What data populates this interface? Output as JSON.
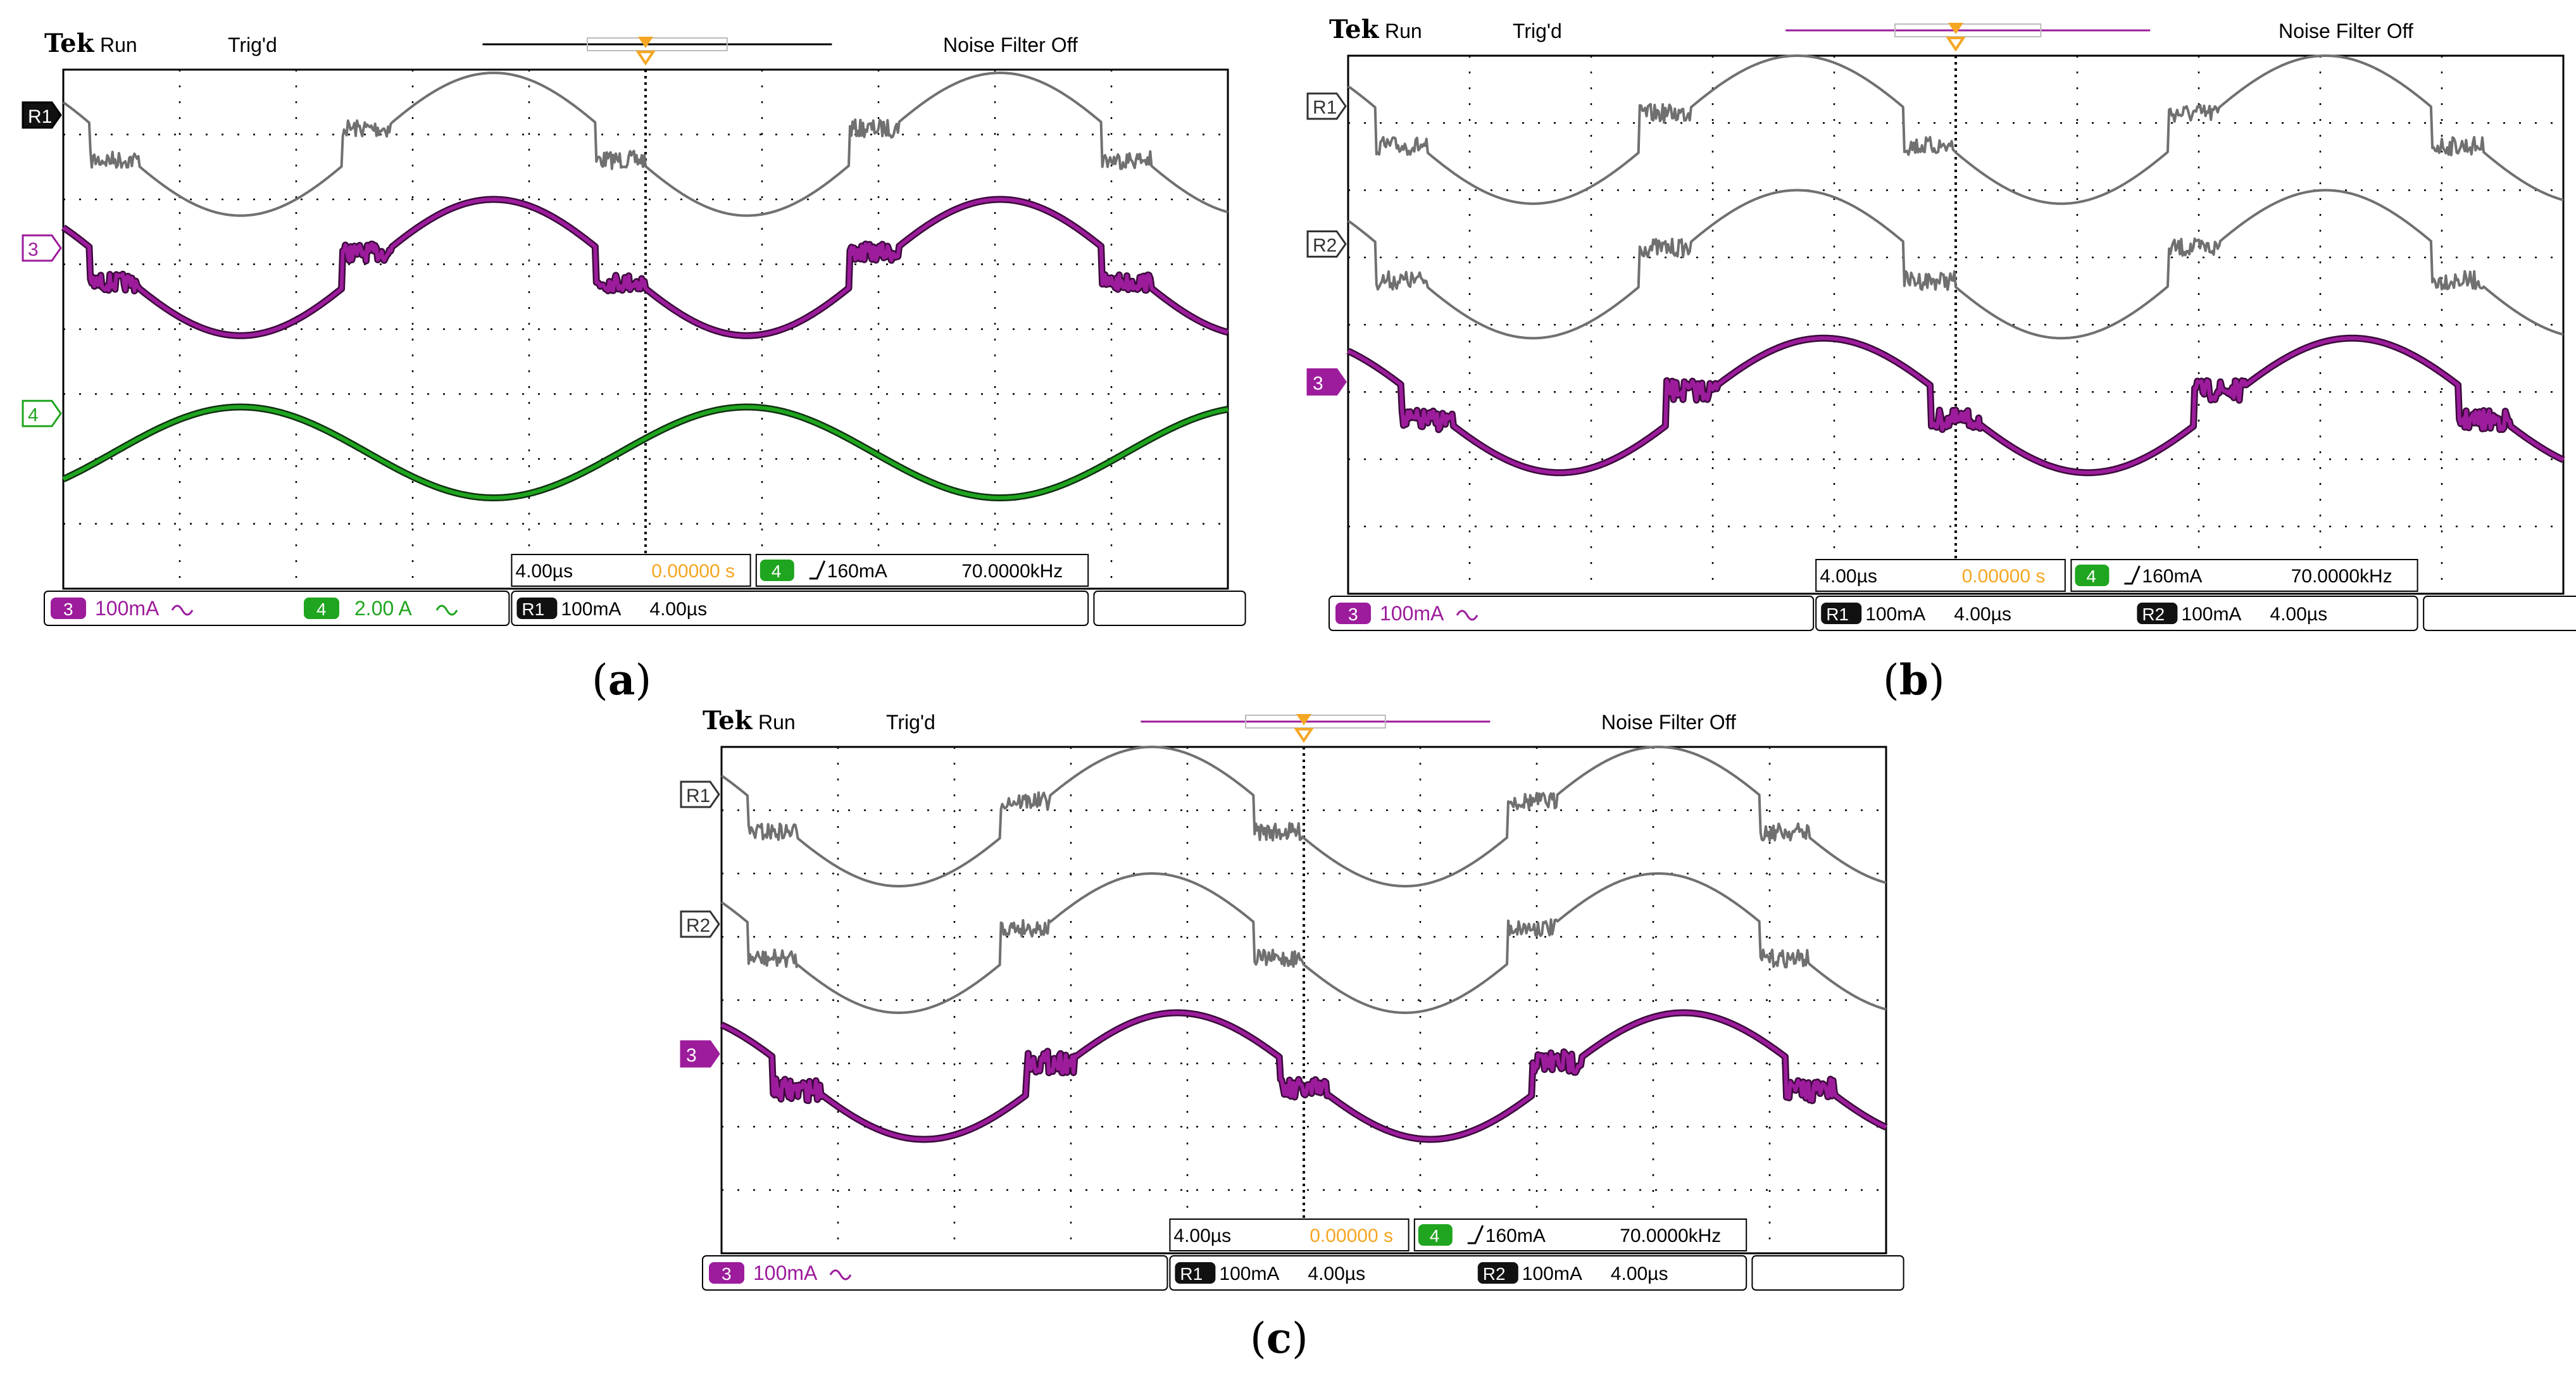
{
  "header": {
    "brand": "Tek",
    "status": "Run",
    "trigger_state": "Trig'd",
    "noise_filter": "Noise Filter Off"
  },
  "readouts": {
    "timebase": "4.00µs",
    "trigger_position": "0.00000 s",
    "trigger_channel": "4",
    "trigger_level": "160mA",
    "trigger_freq": "70.0000kHz",
    "ch3_scale": "100mA",
    "ch4_scale": "2.00 A",
    "ref_scale": "100mA",
    "ref_time": "4.00µs"
  },
  "colors": {
    "ref": "#707070",
    "ch3": "#9c1c9c",
    "ch3_outline": "#3a0a3a",
    "ch4": "#1fa51f",
    "ch4_outline": "#103010",
    "trigger": "#f5a623",
    "grid": "#000000",
    "frame": "#000000",
    "screen": "#ffffff"
  },
  "panels": [
    {
      "caption_open": "(",
      "caption_letter": "a",
      "caption_close": ")",
      "markers": [
        {
          "label": "R1",
          "style": "filled-dark",
          "level_div": 0.7
        },
        {
          "label": "3",
          "style": "outline-purple",
          "level_div": 2.75
        },
        {
          "label": "4",
          "style": "outline-green",
          "level_div": 5.3
        }
      ],
      "ref_labels": [
        "R1"
      ]
    },
    {
      "caption_open": "(",
      "caption_letter": "b",
      "caption_close": ")",
      "markers": [
        {
          "label": "R1",
          "style": "outline-gray",
          "level_div": 0.75
        },
        {
          "label": "R2",
          "style": "outline-gray",
          "level_div": 2.8
        },
        {
          "label": "3",
          "style": "filled-purple",
          "level_div": 4.85
        }
      ],
      "ref_labels": [
        "R1",
        "R2"
      ]
    },
    {
      "caption_open": "(",
      "caption_letter": "c",
      "caption_close": ")",
      "markers": [
        {
          "label": "R1",
          "style": "outline-gray",
          "level_div": 0.75
        },
        {
          "label": "R2",
          "style": "outline-gray",
          "level_div": 2.8
        },
        {
          "label": "3",
          "style": "filled-purple",
          "level_div": 4.85
        }
      ],
      "ref_labels": [
        "R1",
        "R2"
      ]
    }
  ],
  "chart_data": [
    {
      "type": "line",
      "panel": "a",
      "grid": true,
      "x_divisions": 10,
      "y_divisions": 8,
      "x_range_us": [
        -20,
        20
      ],
      "series": [
        {
          "name": "R1",
          "kind": "ref",
          "center_div": 1.15,
          "amplitude_div": 1.1,
          "phase": 0.15,
          "flat_div": 0.25,
          "noise": 0.05
        },
        {
          "name": "3",
          "kind": "ch3",
          "center_div": 3.05,
          "amplitude_div": 1.05,
          "phase": 0.15,
          "flat_div": 0.25,
          "noise": 0.05
        },
        {
          "name": "4",
          "kind": "ch4",
          "center_div": 5.9,
          "amplitude_div": 0.7,
          "phase": -0.35,
          "flat_div": 0,
          "noise": 0.0
        }
      ]
    },
    {
      "type": "line",
      "panel": "b",
      "grid": true,
      "x_divisions": 10,
      "y_divisions": 8,
      "x_range_us": [
        -20,
        20
      ],
      "series": [
        {
          "name": "R1",
          "kind": "ref",
          "center_div": 1.1,
          "amplitude_div": 1.1,
          "phase": 0.15,
          "flat_div": 0.25,
          "noise": 0.05
        },
        {
          "name": "R2",
          "kind": "ref",
          "center_div": 3.1,
          "amplitude_div": 1.1,
          "phase": 0.15,
          "flat_div": 0.25,
          "noise": 0.05
        },
        {
          "name": "3",
          "kind": "ch3",
          "center_div": 5.2,
          "amplitude_div": 1.0,
          "phase": 0.1,
          "flat_div": 0.2,
          "noise": 0.06
        }
      ]
    },
    {
      "type": "line",
      "panel": "c",
      "grid": true,
      "x_divisions": 10,
      "y_divisions": 8,
      "x_range_us": [
        -20,
        20
      ],
      "series": [
        {
          "name": "R1",
          "kind": "ref",
          "center_div": 1.1,
          "amplitude_div": 1.1,
          "phase": 0.15,
          "flat_div": 0.25,
          "noise": 0.05
        },
        {
          "name": "R2",
          "kind": "ref",
          "center_div": 3.1,
          "amplitude_div": 1.1,
          "phase": 0.15,
          "flat_div": 0.25,
          "noise": 0.05
        },
        {
          "name": "3",
          "kind": "ch3",
          "center_div": 5.2,
          "amplitude_div": 1.0,
          "phase": 0.1,
          "flat_div": 0.22,
          "noise": 0.07
        }
      ]
    }
  ]
}
